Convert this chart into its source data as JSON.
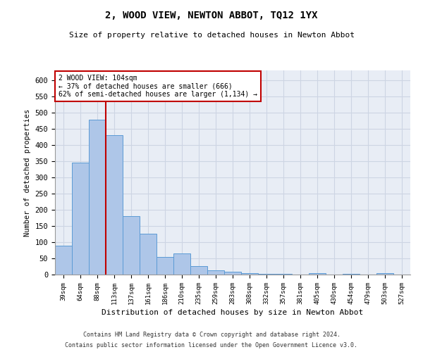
{
  "title": "2, WOOD VIEW, NEWTON ABBOT, TQ12 1YX",
  "subtitle": "Size of property relative to detached houses in Newton Abbot",
  "xlabel": "Distribution of detached houses by size in Newton Abbot",
  "ylabel": "Number of detached properties",
  "categories": [
    "39sqm",
    "64sqm",
    "88sqm",
    "113sqm",
    "137sqm",
    "161sqm",
    "186sqm",
    "210sqm",
    "235sqm",
    "259sqm",
    "283sqm",
    "308sqm",
    "332sqm",
    "357sqm",
    "381sqm",
    "405sqm",
    "430sqm",
    "454sqm",
    "479sqm",
    "503sqm",
    "527sqm"
  ],
  "values": [
    88,
    345,
    478,
    430,
    180,
    125,
    55,
    65,
    25,
    12,
    8,
    5,
    3,
    3,
    0,
    5,
    0,
    3,
    0,
    5,
    0
  ],
  "bar_color": "#aec6e8",
  "bar_edge_color": "#5b9bd5",
  "vline_x": 2.5,
  "vline_color": "#c00000",
  "annotation_line1": "2 WOOD VIEW: 104sqm",
  "annotation_line2": "← 37% of detached houses are smaller (666)",
  "annotation_line3": "62% of semi-detached houses are larger (1,134) →",
  "annotation_box_color": "#ffffff",
  "annotation_box_edge": "#c00000",
  "ylim": [
    0,
    630
  ],
  "yticks": [
    0,
    50,
    100,
    150,
    200,
    250,
    300,
    350,
    400,
    450,
    500,
    550,
    600
  ],
  "grid_color": "#cdd5e3",
  "background_color": "#e8edf5",
  "footer1": "Contains HM Land Registry data © Crown copyright and database right 2024.",
  "footer2": "Contains public sector information licensed under the Open Government Licence v3.0."
}
